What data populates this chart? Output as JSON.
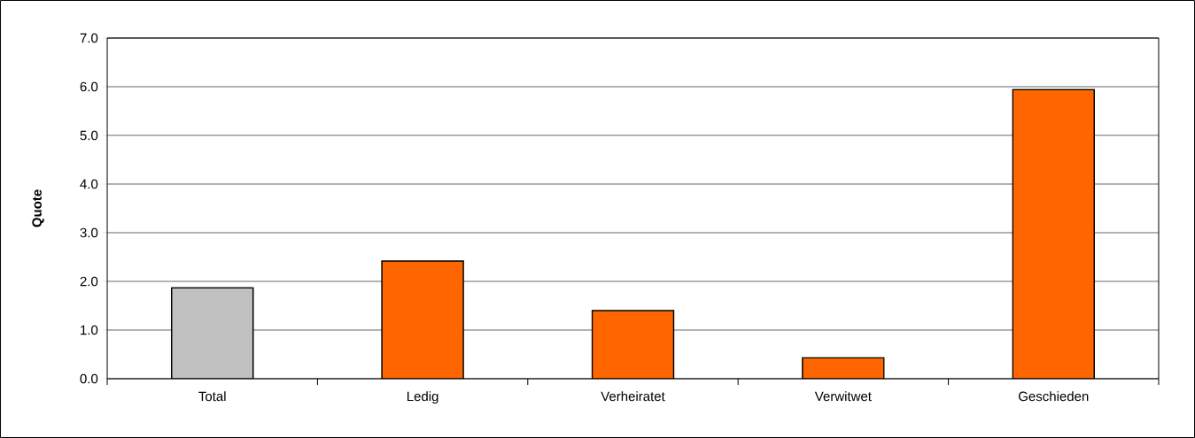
{
  "chart_data": {
    "type": "bar",
    "ylabel": "Quote",
    "categories": [
      "Total",
      "Ledig",
      "Verheiratet",
      "Verwitwet",
      "Geschieden"
    ],
    "values": [
      1.87,
      2.42,
      1.4,
      0.43,
      5.94
    ],
    "colors": [
      "#c0c0c0",
      "#ff6600",
      "#ff6600",
      "#ff6600",
      "#ff6600"
    ],
    "ylim": [
      0,
      7
    ],
    "yticks": [
      {
        "value": 0,
        "label": "0.0"
      },
      {
        "value": 1,
        "label": "1.0"
      },
      {
        "value": 2,
        "label": "2.0"
      },
      {
        "value": 3,
        "label": "3.0"
      },
      {
        "value": 4,
        "label": "4.0"
      },
      {
        "value": 5,
        "label": "5.0"
      },
      {
        "value": 6,
        "label": "6.0"
      },
      {
        "value": 7,
        "label": "7.0"
      }
    ],
    "grid": "y"
  }
}
